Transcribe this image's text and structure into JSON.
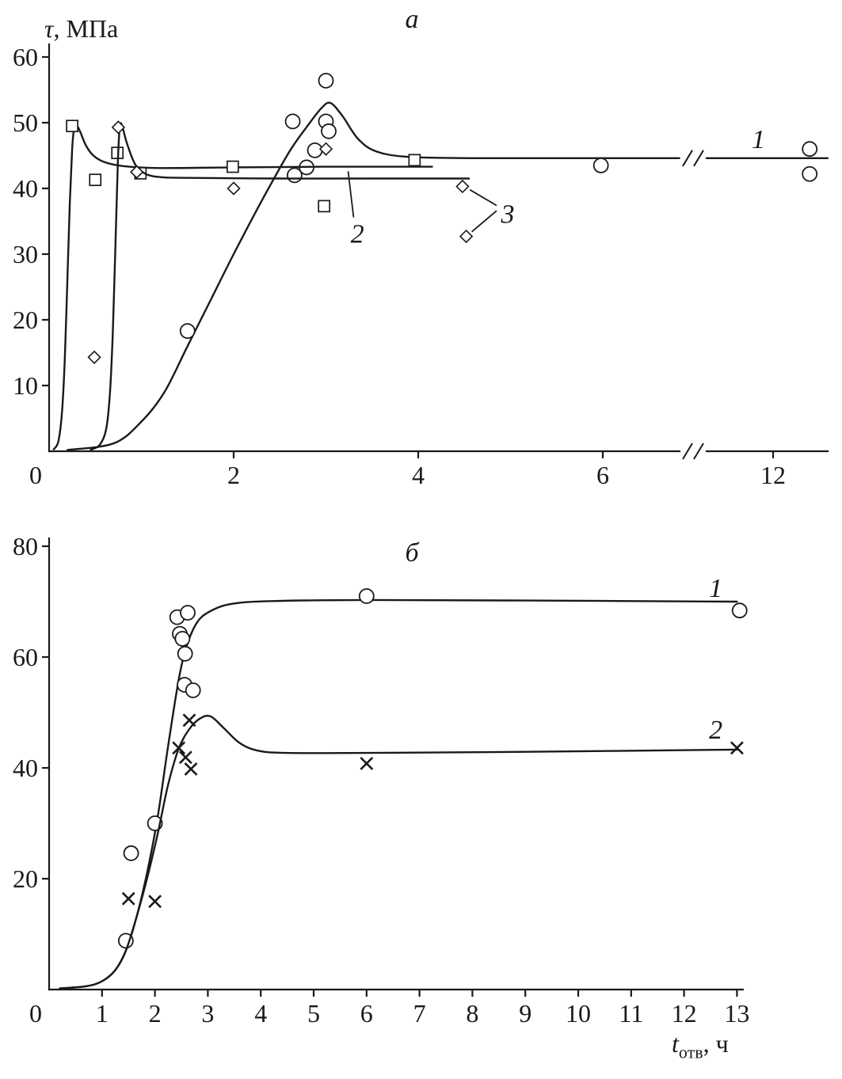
{
  "figure": {
    "background": "#ffffff",
    "ink": "#1a1a1a",
    "description": "Two-panel line+scatter figure: shear strength vs curing time"
  },
  "chart_data": [
    {
      "id": "a",
      "type": "line",
      "title": "а",
      "ylabel": "τ, МПа",
      "ylabel_parts": {
        "symbol": "τ",
        "units": ", МПа"
      },
      "xlabel": "",
      "grid": false,
      "legend": "inline curve numbers 1, 2, 3",
      "x_axis": {
        "min": 0,
        "max": 12.9,
        "break_between": [
          6.9,
          11
        ],
        "origin_label": "0",
        "ticks": [
          {
            "v": 2,
            "label": "2"
          },
          {
            "v": 4,
            "label": "4"
          },
          {
            "v": 6,
            "label": "6"
          },
          {
            "v": 12,
            "label": "12"
          }
        ]
      },
      "y_axis": {
        "min": 0,
        "max": 60,
        "ticks": [
          {
            "v": 10,
            "label": "10"
          },
          {
            "v": 20,
            "label": "20"
          },
          {
            "v": 30,
            "label": "30"
          },
          {
            "v": 40,
            "label": "40"
          },
          {
            "v": 50,
            "label": "50"
          },
          {
            "v": 60,
            "label": "60"
          }
        ]
      },
      "series": [
        {
          "label": "1",
          "marker": "circle",
          "line_break": true,
          "points": [
            [
              1.5,
              18.3
            ],
            [
              2.64,
              50.2
            ],
            [
              2.66,
              42.0
            ],
            [
              2.79,
              43.2
            ],
            [
              2.88,
              45.8
            ],
            [
              3.0,
              56.4
            ],
            [
              3.0,
              50.2
            ],
            [
              3.03,
              48.7
            ],
            [
              5.98,
              43.5
            ],
            [
              12.55,
              46.0
            ],
            [
              12.55,
              42.2
            ]
          ],
          "curve_segments": [
            [
              [
                0.2,
                0.2
              ],
              [
                0.7,
                1.2
              ],
              [
                1.0,
                4.5
              ],
              [
                1.25,
                9
              ],
              [
                1.5,
                16
              ],
              [
                1.75,
                23
              ],
              [
                2.0,
                30
              ],
              [
                2.3,
                38
              ],
              [
                2.6,
                45.5
              ],
              [
                2.8,
                49.5
              ],
              [
                2.95,
                52.2
              ],
              [
                3.05,
                53
              ],
              [
                3.18,
                51
              ],
              [
                3.35,
                47.5
              ],
              [
                3.55,
                45.6
              ],
              [
                3.9,
                44.8
              ],
              [
                4.6,
                44.6
              ],
              [
                5.6,
                44.6
              ],
              [
                6.83,
                44.6
              ]
            ],
            [
              [
                11,
                44.6
              ],
              [
                12.82,
                44.6
              ]
            ]
          ]
        },
        {
          "label": "2",
          "marker": "square",
          "line_break": false,
          "points": [
            [
              0.25,
              49.5
            ],
            [
              0.5,
              41.3
            ],
            [
              0.74,
              45.4
            ],
            [
              0.99,
              42.3
            ],
            [
              1.99,
              43.3
            ],
            [
              2.98,
              37.3
            ],
            [
              3.96,
              44.3
            ]
          ],
          "curve_segments": [
            [
              [
                0.05,
                0.3
              ],
              [
                0.1,
                1.5
              ],
              [
                0.14,
                6
              ],
              [
                0.17,
                14
              ],
              [
                0.2,
                27
              ],
              [
                0.225,
                38
              ],
              [
                0.25,
                46
              ],
              [
                0.27,
                49.0
              ],
              [
                0.3,
                49.6
              ],
              [
                0.34,
                48.5
              ],
              [
                0.4,
                46.5
              ],
              [
                0.48,
                45.0
              ],
              [
                0.6,
                44.0
              ],
              [
                0.8,
                43.4
              ],
              [
                1.2,
                43.1
              ],
              [
                2.0,
                43.2
              ],
              [
                3.0,
                43.3
              ],
              [
                4.15,
                43.3
              ]
            ]
          ]
        },
        {
          "label": "3",
          "marker": "diamond",
          "line_break": false,
          "points": [
            [
              0.49,
              14.3
            ],
            [
              0.75,
              49.3
            ],
            [
              0.95,
              42.5
            ],
            [
              2.0,
              40.0
            ],
            [
              3.0,
              46.0
            ],
            [
              4.48,
              40.3
            ],
            [
              4.52,
              32.7
            ]
          ],
          "curve_segments": [
            [
              [
                0.45,
                0.2
              ],
              [
                0.55,
                1
              ],
              [
                0.62,
                3.5
              ],
              [
                0.66,
                9
              ],
              [
                0.69,
                18
              ],
              [
                0.72,
                32
              ],
              [
                0.745,
                44
              ],
              [
                0.765,
                49.3
              ],
              [
                0.79,
                49.6
              ],
              [
                0.84,
                47
              ],
              [
                0.92,
                44
              ],
              [
                1.0,
                42.6
              ],
              [
                1.15,
                41.8
              ],
              [
                1.5,
                41.6
              ],
              [
                2.5,
                41.5
              ],
              [
                3.5,
                41.5
              ],
              [
                4.55,
                41.5
              ]
            ]
          ]
        }
      ],
      "annotations": [
        {
          "text": "1",
          "x": 11.78,
          "y": 47.6,
          "lines": []
        },
        {
          "text": "2",
          "x": 3.34,
          "y": 33.2,
          "lines": [
            [
              [
                3.3,
                35.6
              ],
              [
                3.24,
                42.6
              ]
            ]
          ]
        },
        {
          "text": "3",
          "x": 4.97,
          "y": 36.2,
          "lines": [
            [
              [
                4.56,
                39.8
              ],
              [
                4.85,
                37.4
              ]
            ],
            [
              [
                4.58,
                33.4
              ],
              [
                4.85,
                36.6
              ]
            ]
          ]
        }
      ]
    },
    {
      "id": "b",
      "type": "line",
      "title": "б",
      "ylabel": "",
      "xlabel": "tотв, ч",
      "xlabel_parts": {
        "symbol": "t",
        "subscript": "отв",
        "units": ", ч"
      },
      "grid": false,
      "legend": "inline curve numbers 1, 2",
      "x_axis": {
        "min": 0,
        "max": 13,
        "origin_label": "0",
        "ticks": [
          {
            "v": 1,
            "label": "1"
          },
          {
            "v": 2,
            "label": "2"
          },
          {
            "v": 3,
            "label": "3"
          },
          {
            "v": 4,
            "label": "4"
          },
          {
            "v": 5,
            "label": "5"
          },
          {
            "v": 6,
            "label": "6"
          },
          {
            "v": 7,
            "label": "7"
          },
          {
            "v": 8,
            "label": "8"
          },
          {
            "v": 9,
            "label": "9"
          },
          {
            "v": 10,
            "label": "10"
          },
          {
            "v": 11,
            "label": "11"
          },
          {
            "v": 12,
            "label": "12"
          },
          {
            "v": 13,
            "label": "13"
          }
        ]
      },
      "y_axis": {
        "min": 0,
        "max": 80,
        "ticks": [
          {
            "v": 20,
            "label": "20"
          },
          {
            "v": 40,
            "label": "40"
          },
          {
            "v": 60,
            "label": "60"
          },
          {
            "v": 80,
            "label": "80"
          }
        ]
      },
      "series": [
        {
          "label": "1",
          "marker": "circle",
          "line_break": false,
          "points": [
            [
              1.45,
              8.8
            ],
            [
              1.55,
              24.6
            ],
            [
              2.0,
              30.0
            ],
            [
              2.42,
              67.2
            ],
            [
              2.62,
              68.0
            ],
            [
              2.47,
              64.2
            ],
            [
              2.52,
              63.3
            ],
            [
              2.57,
              60.6
            ],
            [
              2.56,
              55.0
            ],
            [
              2.72,
              54.0
            ],
            [
              6.0,
              71.0
            ],
            [
              13.05,
              68.4
            ]
          ],
          "curve_segments": [
            [
              [
                0.2,
                0.2
              ],
              [
                0.7,
                0.6
              ],
              [
                1.0,
                1.5
              ],
              [
                1.25,
                3.5
              ],
              [
                1.45,
                7
              ],
              [
                1.65,
                13
              ],
              [
                1.85,
                21
              ],
              [
                2.05,
                31
              ],
              [
                2.25,
                44
              ],
              [
                2.45,
                56
              ],
              [
                2.6,
                62
              ],
              [
                2.8,
                66.3
              ],
              [
                3.05,
                68.3
              ],
              [
                3.45,
                69.6
              ],
              [
                4.2,
                70.1
              ],
              [
                6.0,
                70.3
              ],
              [
                9.0,
                70.2
              ],
              [
                13.0,
                70.0
              ]
            ]
          ]
        },
        {
          "label": "2",
          "marker": "cross",
          "line_break": false,
          "points": [
            [
              1.5,
              16.4
            ],
            [
              2.0,
              15.9
            ],
            [
              2.45,
              43.6
            ],
            [
              2.58,
              41.9
            ],
            [
              2.68,
              39.8
            ],
            [
              2.65,
              48.6
            ],
            [
              6.0,
              40.8
            ],
            [
              13.0,
              43.6
            ]
          ],
          "curve_segments": [
            [
              [
                0.2,
                0.2
              ],
              [
                0.7,
                0.6
              ],
              [
                1.0,
                1.5
              ],
              [
                1.25,
                3.5
              ],
              [
                1.45,
                7
              ],
              [
                1.65,
                13
              ],
              [
                1.85,
                20
              ],
              [
                2.05,
                28
              ],
              [
                2.25,
                37
              ],
              [
                2.45,
                43.5
              ],
              [
                2.65,
                47
              ],
              [
                2.85,
                48.9
              ],
              [
                3.05,
                49.3
              ],
              [
                3.3,
                47.2
              ],
              [
                3.6,
                44.5
              ],
              [
                3.95,
                43.1
              ],
              [
                4.5,
                42.7
              ],
              [
                6.0,
                42.7
              ],
              [
                9.0,
                42.9
              ],
              [
                13.0,
                43.3
              ]
            ]
          ]
        }
      ],
      "annotations": [
        {
          "text": "1",
          "x": 12.6,
          "y": 72.6,
          "lines": []
        },
        {
          "text": "2",
          "x": 12.6,
          "y": 47.0,
          "lines": []
        }
      ]
    }
  ]
}
